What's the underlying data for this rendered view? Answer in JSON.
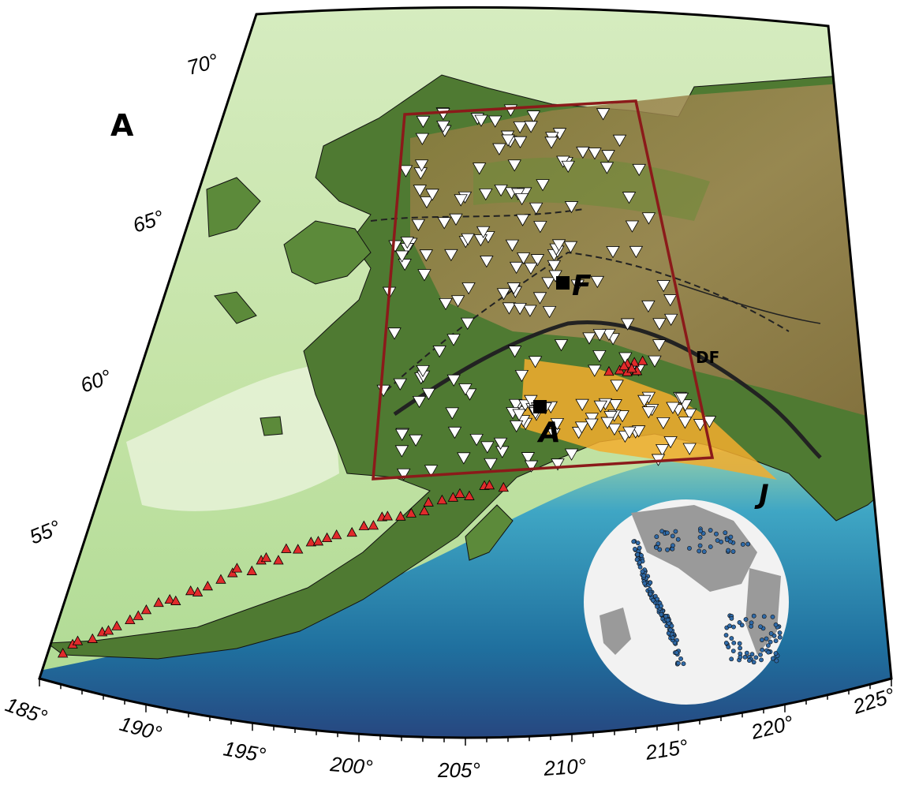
{
  "panel_label": "A",
  "latitude_labels": [
    "70°",
    "65°",
    "60°",
    "55°"
  ],
  "longitude_labels": [
    "185°",
    "190°",
    "195°",
    "200°",
    "205°",
    "210°",
    "215°",
    "220°",
    "225°"
  ],
  "places": {
    "fairbanks": "F",
    "anchorage": "A",
    "juneau": "J",
    "denali_fault": "DF"
  }
}
